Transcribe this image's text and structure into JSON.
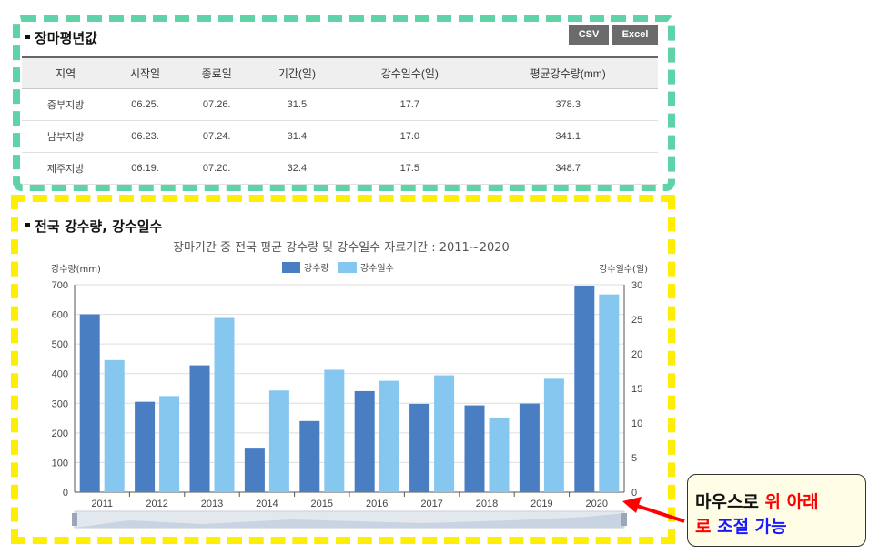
{
  "summary": {
    "title": "장마평년값",
    "csv_label": "CSV",
    "excel_label": "Excel",
    "columns": [
      "지역",
      "시작일",
      "종료일",
      "기간(일)",
      "강수일수(일)",
      "평균강수량(mm)"
    ],
    "rows": [
      [
        "중부지방",
        "06.25.",
        "07.26.",
        "31.5",
        "17.7",
        "378.3"
      ],
      [
        "남부지방",
        "06.23.",
        "07.24.",
        "31.4",
        "17.0",
        "341.1"
      ],
      [
        "제주지방",
        "06.19.",
        "07.20.",
        "32.4",
        "17.5",
        "348.7"
      ]
    ]
  },
  "chart_section": {
    "title": "전국 강수량, 강수일수"
  },
  "chart_data": {
    "type": "bar",
    "title": "장마기간 중 전국 평균 강수량 및 강수일수 자료기간 : 2011~2020",
    "categories": [
      "2011",
      "2012",
      "2013",
      "2014",
      "2015",
      "2016",
      "2017",
      "2018",
      "2019",
      "2020"
    ],
    "series": [
      {
        "name": "강수량",
        "axis": "left",
        "color": "#4a7ec3",
        "values": [
          600,
          305,
          428,
          147,
          240,
          341,
          298,
          293,
          299,
          697
        ]
      },
      {
        "name": "강수일수",
        "axis": "right",
        "color": "#86c7f0",
        "values": [
          19.1,
          13.9,
          25.2,
          14.7,
          17.7,
          16.1,
          16.9,
          10.8,
          16.4,
          28.6
        ]
      }
    ],
    "ylabel_left": "강수량(mm)",
    "ylabel_right": "강수일수(일)",
    "ylim_left": [
      0,
      700
    ],
    "ylim_right": [
      0,
      30
    ],
    "yticks_left": [
      0,
      100,
      200,
      300,
      400,
      500,
      600,
      700
    ],
    "yticks_right": [
      0,
      5,
      10,
      15,
      20,
      25,
      30
    ],
    "legend": "top-center",
    "grid": true
  },
  "callout": {
    "part1": "마우스로 ",
    "part2": "위 아래",
    "part3": "로",
    "part4": " 조절",
    "part5": " 가능"
  }
}
